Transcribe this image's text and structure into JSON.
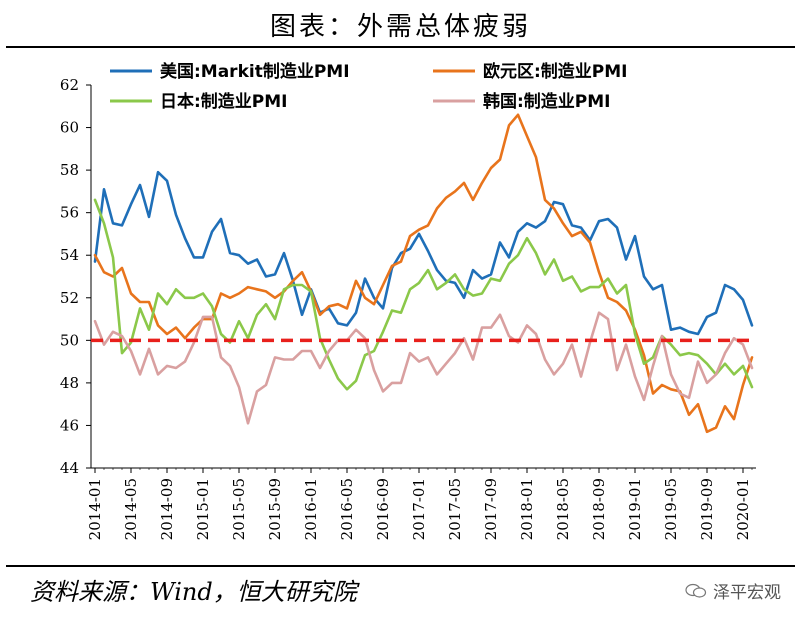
{
  "page": {
    "title": "图表：外需总体疲弱",
    "source": "资料来源：Wind，恒大研究院",
    "watermark": "泽平宏观"
  },
  "chart_data": {
    "type": "line",
    "title": "图表：外需总体疲弱",
    "xlabel": "",
    "ylabel": "",
    "ylim": [
      44,
      62
    ],
    "yticks": [
      44,
      46,
      48,
      50,
      52,
      54,
      56,
      58,
      60,
      62
    ],
    "x": [
      "2014-01",
      "2014-02",
      "2014-03",
      "2014-04",
      "2014-05",
      "2014-06",
      "2014-07",
      "2014-08",
      "2014-09",
      "2014-10",
      "2014-11",
      "2014-12",
      "2015-01",
      "2015-02",
      "2015-03",
      "2015-04",
      "2015-05",
      "2015-06",
      "2015-07",
      "2015-08",
      "2015-09",
      "2015-10",
      "2015-11",
      "2015-12",
      "2016-01",
      "2016-02",
      "2016-03",
      "2016-04",
      "2016-05",
      "2016-06",
      "2016-07",
      "2016-08",
      "2016-09",
      "2016-10",
      "2016-11",
      "2016-12",
      "2017-01",
      "2017-02",
      "2017-03",
      "2017-04",
      "2017-05",
      "2017-06",
      "2017-07",
      "2017-08",
      "2017-09",
      "2017-10",
      "2017-11",
      "2017-12",
      "2018-01",
      "2018-02",
      "2018-03",
      "2018-04",
      "2018-05",
      "2018-06",
      "2018-07",
      "2018-08",
      "2018-09",
      "2018-10",
      "2018-11",
      "2018-12",
      "2019-01",
      "2019-02",
      "2019-03",
      "2019-04",
      "2019-05",
      "2019-06",
      "2019-07",
      "2019-08",
      "2019-09",
      "2019-10",
      "2019-11",
      "2019-12",
      "2020-01",
      "2020-02"
    ],
    "xtick_labels": [
      "2014-01",
      "2014-05",
      "2014-09",
      "2015-01",
      "2015-05",
      "2015-09",
      "2016-01",
      "2016-05",
      "2016-09",
      "2017-01",
      "2017-05",
      "2017-09",
      "2018-01",
      "2018-05",
      "2018-09",
      "2019-01",
      "2019-05",
      "2019-09",
      "2020-01"
    ],
    "reference_line": {
      "value": 50,
      "color": "#e8201c",
      "style": "dashed"
    },
    "legend_placement": "top",
    "series": [
      {
        "name": "美国:Markit制造业PMI",
        "color": "#1f6fb8",
        "values": [
          53.7,
          57.1,
          55.5,
          55.4,
          56.4,
          57.3,
          55.8,
          57.9,
          57.5,
          55.9,
          54.8,
          53.9,
          53.9,
          55.1,
          55.7,
          54.1,
          54.0,
          53.6,
          53.8,
          53.0,
          53.1,
          54.1,
          52.8,
          51.2,
          52.4,
          51.3,
          51.5,
          50.8,
          50.7,
          51.3,
          52.9,
          52.0,
          51.5,
          53.4,
          54.1,
          54.3,
          55.0,
          54.2,
          53.3,
          52.8,
          52.7,
          52.0,
          53.3,
          52.9,
          53.1,
          54.6,
          53.9,
          55.1,
          55.5,
          55.3,
          55.6,
          56.5,
          56.4,
          55.4,
          55.3,
          54.7,
          55.6,
          55.7,
          55.3,
          53.8,
          54.9,
          53.0,
          52.4,
          52.6,
          50.5,
          50.6,
          50.4,
          50.3,
          51.1,
          51.3,
          52.6,
          52.4,
          51.9,
          50.7
        ]
      },
      {
        "name": "欧元区:制造业PMI",
        "color": "#e8741c",
        "values": [
          54.0,
          53.2,
          53.0,
          53.4,
          52.2,
          51.8,
          51.8,
          50.7,
          50.3,
          50.6,
          50.1,
          50.6,
          51.0,
          51.0,
          52.2,
          52.0,
          52.2,
          52.5,
          52.4,
          52.3,
          52.0,
          52.3,
          52.8,
          53.2,
          52.3,
          51.2,
          51.6,
          51.7,
          51.5,
          52.8,
          52.0,
          51.7,
          52.6,
          53.5,
          53.7,
          54.9,
          55.2,
          55.4,
          56.2,
          56.7,
          57.0,
          57.4,
          56.6,
          57.4,
          58.1,
          58.5,
          60.1,
          60.6,
          59.6,
          58.6,
          56.6,
          56.2,
          55.5,
          54.9,
          55.1,
          54.6,
          53.2,
          52.0,
          51.8,
          51.4,
          50.5,
          49.3,
          47.5,
          47.9,
          47.7,
          47.6,
          46.5,
          47.0,
          45.7,
          45.9,
          46.9,
          46.3,
          47.9,
          49.2
        ]
      },
      {
        "name": "日本:制造业PMI",
        "color": "#8bc84a",
        "values": [
          56.6,
          55.5,
          53.9,
          49.4,
          49.9,
          51.5,
          50.5,
          52.2,
          51.7,
          52.4,
          52.0,
          52.0,
          52.2,
          51.6,
          50.3,
          49.9,
          50.9,
          50.1,
          51.2,
          51.7,
          51.0,
          52.4,
          52.6,
          52.6,
          52.3,
          50.1,
          49.1,
          48.2,
          47.7,
          48.1,
          49.3,
          49.5,
          50.4,
          51.4,
          51.3,
          52.4,
          52.7,
          53.3,
          52.4,
          52.7,
          53.1,
          52.4,
          52.1,
          52.2,
          52.9,
          52.8,
          53.6,
          54.0,
          54.8,
          54.1,
          53.1,
          53.8,
          52.8,
          53.0,
          52.3,
          52.5,
          52.5,
          52.9,
          52.2,
          52.6,
          50.3,
          48.9,
          49.2,
          50.2,
          49.8,
          49.3,
          49.4,
          49.3,
          48.9,
          48.4,
          48.9,
          48.4,
          48.8,
          47.8
        ]
      },
      {
        "name": "韩国:制造业PMI",
        "color": "#d9a0a0",
        "values": [
          50.9,
          49.8,
          50.4,
          50.2,
          49.5,
          48.4,
          49.6,
          48.4,
          48.8,
          48.7,
          49.0,
          49.9,
          51.1,
          51.1,
          49.2,
          48.8,
          47.8,
          46.1,
          47.6,
          47.9,
          49.2,
          49.1,
          49.1,
          49.5,
          49.5,
          48.7,
          49.5,
          50.0,
          50.0,
          50.5,
          50.1,
          48.6,
          47.6,
          48.0,
          48.0,
          49.4,
          49.0,
          49.2,
          48.4,
          48.9,
          49.4,
          50.1,
          49.1,
          50.6,
          50.6,
          51.2,
          50.2,
          49.9,
          50.7,
          50.3,
          49.1,
          48.4,
          48.9,
          49.8,
          48.3,
          49.9,
          51.3,
          51.0,
          48.6,
          49.8,
          48.3,
          47.2,
          48.8,
          50.2,
          48.4,
          47.5,
          47.3,
          49.0,
          48.0,
          48.4,
          49.4,
          50.1,
          49.8,
          48.7
        ]
      }
    ]
  }
}
